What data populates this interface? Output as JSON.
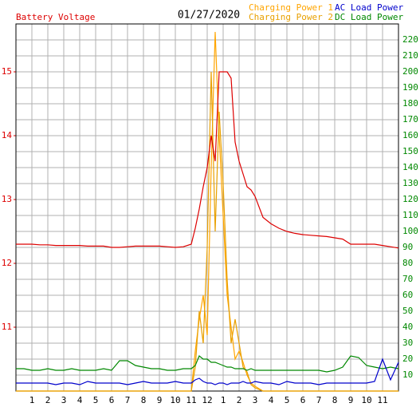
{
  "chart_data": {
    "type": "line",
    "title": "Battery Voltage",
    "subtitle": "01/27/2020",
    "x": [
      0,
      0.5,
      1,
      1.5,
      2,
      2.5,
      3,
      3.5,
      4,
      4.5,
      5,
      5.5,
      6,
      6.5,
      7,
      7.5,
      8,
      8.5,
      9,
      9.5,
      10,
      10.5,
      11,
      11.25,
      11.5,
      11.75,
      12,
      12.25,
      12.5,
      12.75,
      13,
      13.25,
      13.5,
      13.75,
      14,
      14.25,
      14.5,
      14.75,
      15,
      15.5,
      16,
      16.5,
      17,
      17.5,
      18,
      18.5,
      19,
      19.5,
      20,
      20.5,
      21,
      21.5,
      22,
      22.5,
      23,
      23.5,
      24
    ],
    "xlim": [
      0,
      24
    ],
    "xticks": [
      1,
      2,
      3,
      4,
      5,
      6,
      7,
      8,
      9,
      10,
      11,
      12,
      {
        "value": 13,
        "label": "1"
      },
      {
        "value": 14,
        "label": "2"
      },
      {
        "value": 15,
        "label": "3"
      },
      {
        "value": 16,
        "label": "4"
      },
      {
        "value": 17,
        "label": "5"
      },
      {
        "value": 18,
        "label": "6"
      },
      {
        "value": 19,
        "label": "7"
      },
      {
        "value": 20,
        "label": "8"
      },
      {
        "value": 21,
        "label": "9"
      },
      {
        "value": 22,
        "label": "10"
      },
      {
        "value": 23,
        "label": "11"
      }
    ],
    "ylim": [
      10,
      15.75
    ],
    "yticks": [
      11,
      12,
      13,
      14,
      15
    ],
    "y2lim": [
      0,
      230
    ],
    "y2ticks": [
      10,
      20,
      30,
      40,
      50,
      60,
      70,
      80,
      90,
      100,
      110,
      120,
      130,
      140,
      150,
      160,
      170,
      180,
      190,
      200,
      210,
      220
    ],
    "grid": true,
    "series": [
      {
        "name": "Battery Voltage",
        "color": "#dd0000",
        "axis": "y",
        "values": [
          12.3,
          12.3,
          12.3,
          12.29,
          12.29,
          12.28,
          12.28,
          12.28,
          12.28,
          12.27,
          12.27,
          12.27,
          12.25,
          12.25,
          12.26,
          12.27,
          12.27,
          12.27,
          12.27,
          12.26,
          12.25,
          12.26,
          12.3,
          12.55,
          12.85,
          13.2,
          13.5,
          14.0,
          13.6,
          15.0,
          15.0,
          15.0,
          14.9,
          13.9,
          13.6,
          13.4,
          13.2,
          13.15,
          13.05,
          12.72,
          12.62,
          12.55,
          12.5,
          12.47,
          12.45,
          12.44,
          12.43,
          12.42,
          12.4,
          12.38,
          12.3,
          12.3,
          12.3,
          12.3,
          12.28,
          12.26,
          12.24
        ]
      },
      {
        "name": "Charging Power 1",
        "color": "#ffa500",
        "axis": "y2",
        "values": [
          0,
          0,
          0,
          0,
          0,
          0,
          0,
          0,
          0,
          0,
          0,
          0,
          0,
          0,
          0,
          0,
          0,
          0,
          0,
          0,
          0,
          0,
          0,
          25,
          45,
          60,
          35,
          140,
          225,
          160,
          110,
          60,
          40,
          20,
          25,
          18,
          10,
          5,
          3,
          0,
          0,
          0,
          0,
          0,
          0,
          0,
          0,
          0,
          0,
          0,
          0,
          0,
          0,
          0,
          0,
          0,
          0
        ]
      },
      {
        "name": "Charging Power 2",
        "color": "#e8a000",
        "axis": "y2",
        "values": [
          0,
          0,
          0,
          0,
          0,
          0,
          0,
          0,
          0,
          0,
          0,
          0,
          0,
          0,
          0,
          0,
          0,
          0,
          0,
          0,
          0,
          0,
          0,
          15,
          50,
          30,
          90,
          200,
          100,
          175,
          130,
          70,
          30,
          45,
          30,
          15,
          12,
          4,
          2,
          0,
          0,
          0,
          0,
          0,
          0,
          0,
          0,
          0,
          0,
          0,
          0,
          0,
          0,
          0,
          0,
          0,
          0
        ]
      },
      {
        "name": "AC Load Power",
        "color": "#0000cc",
        "axis": "y2",
        "values": [
          5,
          5,
          5,
          5,
          5,
          4,
          5,
          5,
          4,
          6,
          5,
          5,
          5,
          5,
          4,
          5,
          6,
          5,
          5,
          5,
          6,
          5,
          5,
          7,
          8,
          6,
          5,
          5,
          4,
          5,
          5,
          4,
          5,
          5,
          5,
          6,
          5,
          5,
          6,
          5,
          5,
          4,
          6,
          5,
          5,
          5,
          4,
          5,
          5,
          5,
          5,
          5,
          5,
          6,
          20,
          7,
          18
        ]
      },
      {
        "name": "DC Load Power",
        "color": "#008800",
        "axis": "y2",
        "values": [
          14,
          14,
          13,
          13,
          14,
          13,
          13,
          14,
          13,
          13,
          13,
          14,
          13,
          19,
          19,
          16,
          15,
          14,
          14,
          13,
          13,
          14,
          14,
          16,
          22,
          20,
          20,
          18,
          18,
          17,
          16,
          15,
          15,
          14,
          14,
          14,
          13,
          14,
          13,
          13,
          13,
          13,
          13,
          13,
          13,
          13,
          13,
          12,
          13,
          15,
          22,
          21,
          16,
          15,
          14,
          15,
          14
        ]
      }
    ]
  }
}
